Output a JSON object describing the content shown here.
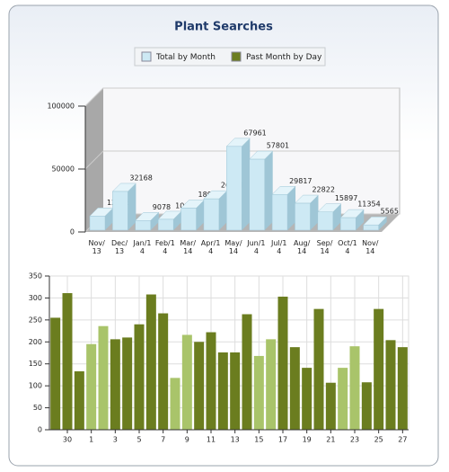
{
  "title": "Plant Searches",
  "chart_data": [
    {
      "type": "bar3d",
      "series": [
        {
          "name": "Total by Month",
          "color": "#cde9f4",
          "values": [
            12645,
            32168,
            9078,
            10037,
            18959,
            26311,
            67961,
            57801,
            29817,
            22822,
            15897,
            11354,
            5565
          ]
        }
      ],
      "categories": [
        "Nov/13",
        "Dec/13",
        "Jan/14",
        "Feb/14",
        "Mar/14",
        "Apr/14",
        "May/14",
        "Jun/14",
        "Jul/14",
        "Aug/14",
        "Sep/14",
        "Oct/14",
        "Nov/14"
      ],
      "ylim": [
        0,
        100000
      ],
      "yticks": [
        0,
        50000,
        100000
      ],
      "grid": true
    },
    {
      "type": "bar",
      "series": [
        {
          "name": "Past Month by Day",
          "color": "#6b7d1f",
          "values": [
            255,
            311,
            133,
            195,
            236,
            206,
            210,
            240,
            308,
            265,
            118,
            216,
            200,
            222,
            176,
            176,
            263,
            168,
            206,
            303,
            188,
            141,
            275,
            107,
            141,
            190,
            108,
            275,
            204,
            188
          ],
          "colors": [
            "#6b7d1f",
            "#6b7d1f",
            "#6b7d1f",
            "#a9c46a",
            "#a9c46a",
            "#6b7d1f",
            "#6b7d1f",
            "#6b7d1f",
            "#6b7d1f",
            "#6b7d1f",
            "#a9c46a",
            "#a9c46a",
            "#6b7d1f",
            "#6b7d1f",
            "#6b7d1f",
            "#6b7d1f",
            "#6b7d1f",
            "#a9c46a",
            "#a9c46a",
            "#6b7d1f",
            "#6b7d1f",
            "#6b7d1f",
            "#6b7d1f",
            "#6b7d1f",
            "#a9c46a",
            "#a9c46a",
            "#6b7d1f",
            "#6b7d1f",
            "#6b7d1f",
            "#6b7d1f"
          ]
        }
      ],
      "categories": [
        null,
        "30",
        null,
        "1",
        null,
        "3",
        null,
        "5",
        null,
        "7",
        null,
        "9",
        null,
        "11",
        null,
        "13",
        null,
        "15",
        null,
        "17",
        null,
        "19",
        null,
        "21",
        null,
        "23",
        null,
        "25",
        null,
        "27"
      ],
      "ylim": [
        0,
        350
      ],
      "yticks": [
        0,
        50,
        100,
        150,
        200,
        250,
        300,
        350
      ],
      "grid": true
    }
  ]
}
